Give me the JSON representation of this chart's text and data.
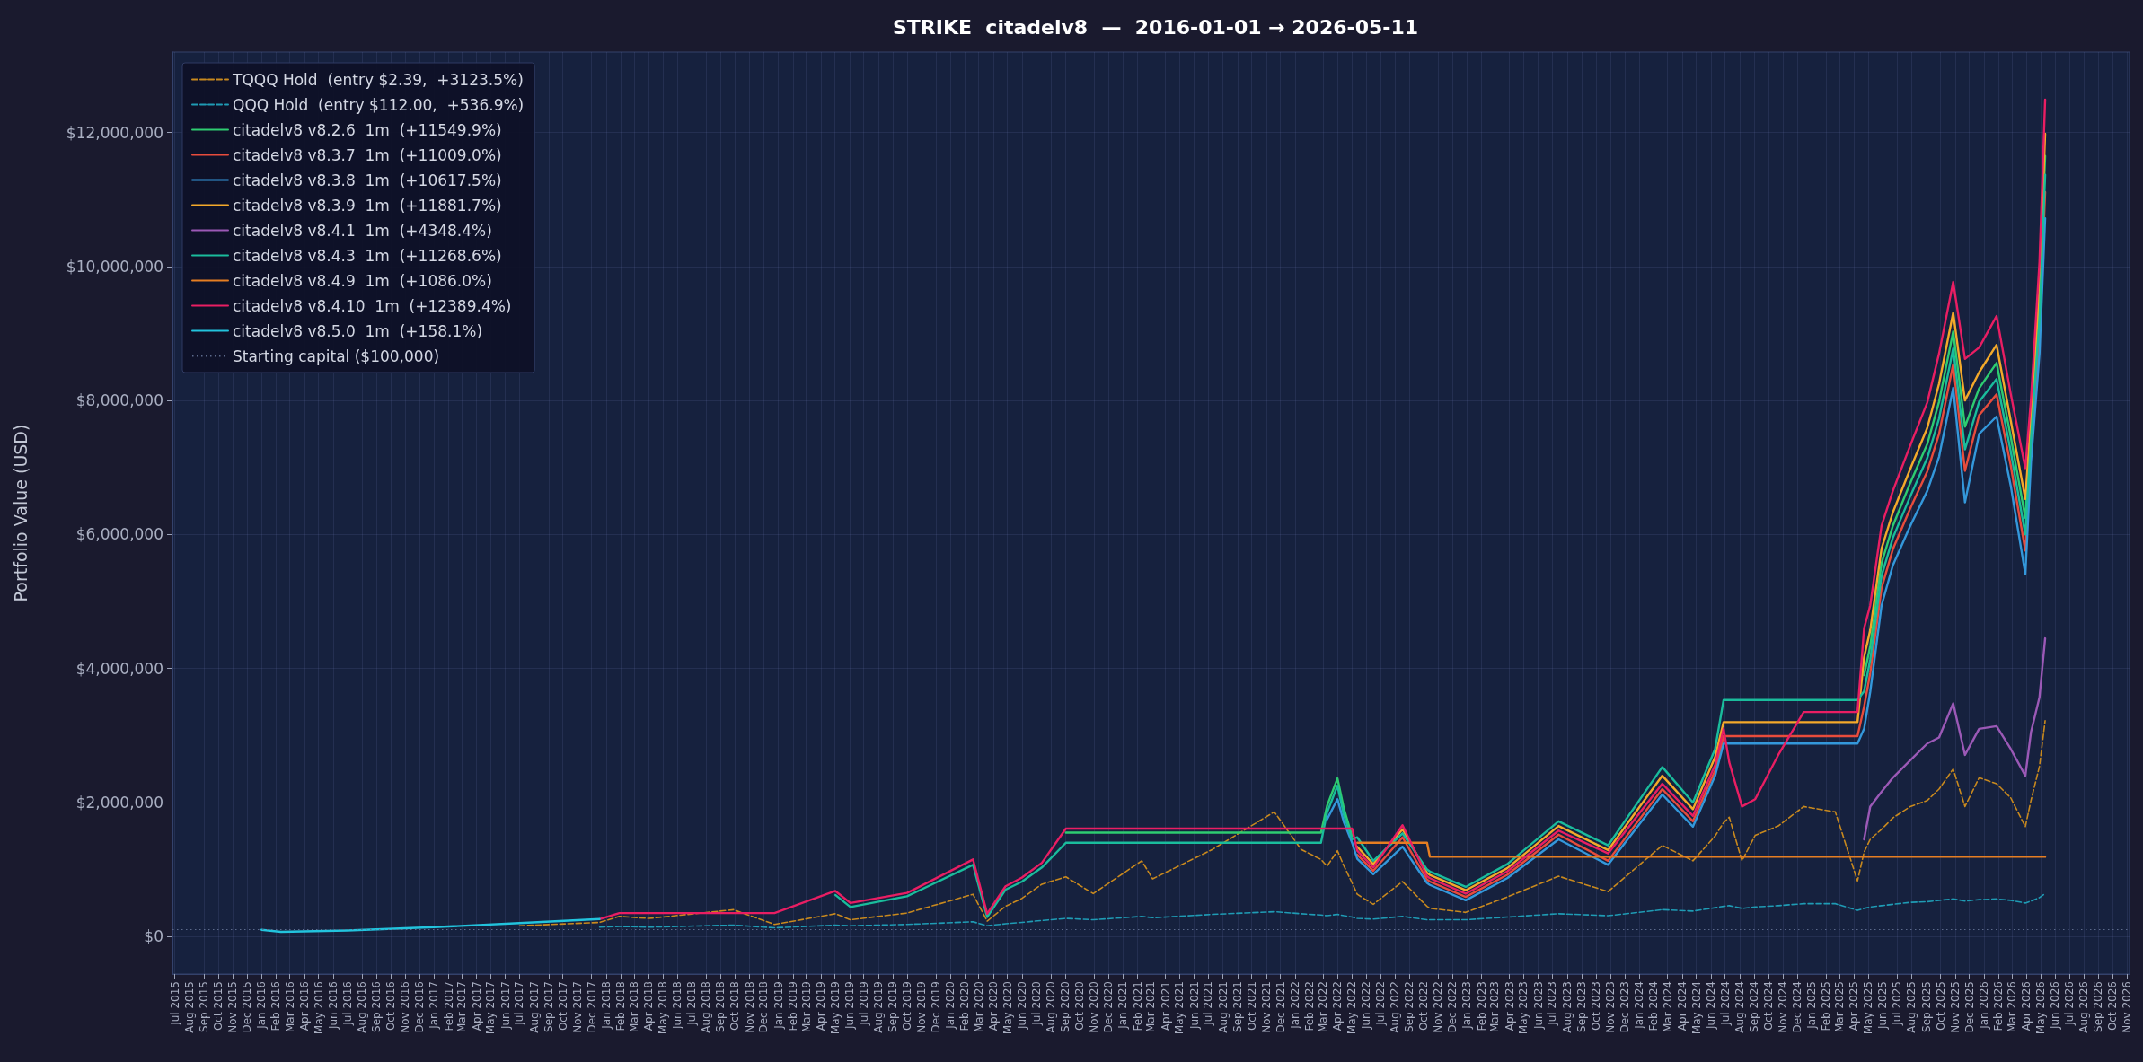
{
  "chart_data": {
    "type": "line",
    "title": "STRIKE  citadelv8  —  2016-01-01 → 2026-05-11",
    "ylabel": "Portfolio Value (USD)",
    "legend": "top left",
    "grid": true,
    "xlim": [
      "2015-06-26",
      "2026-11-06"
    ],
    "ylim": [
      -560000,
      13200000
    ],
    "yticks": [
      {
        "value": 0,
        "label": "$0"
      },
      {
        "value": 2000000,
        "label": "$2,000,000"
      },
      {
        "value": 4000000,
        "label": "$4,000,000"
      },
      {
        "value": 6000000,
        "label": "$6,000,000"
      },
      {
        "value": 8000000,
        "label": "$8,000,000"
      },
      {
        "value": 10000000,
        "label": "$10,000,000"
      },
      {
        "value": 12000000,
        "label": "$12,000,000"
      }
    ],
    "xticks": [
      {
        "value": "2015-07",
        "label": "Jul 2015"
      },
      {
        "value": "2015-08",
        "label": "Aug 2015"
      },
      {
        "value": "2015-09",
        "label": "Sep 2015"
      },
      {
        "value": "2015-10",
        "label": "Oct 2015"
      },
      {
        "value": "2015-11",
        "label": "Nov 2015"
      },
      {
        "value": "2015-12",
        "label": "Dec 2015"
      },
      {
        "value": "2016-01",
        "label": "Jan 2016"
      },
      {
        "value": "2016-02",
        "label": "Feb 2016"
      },
      {
        "value": "2016-03",
        "label": "Mar 2016"
      },
      {
        "value": "2016-04",
        "label": "Apr 2016"
      },
      {
        "value": "2016-05",
        "label": "May 2016"
      },
      {
        "value": "2016-06",
        "label": "Jun 2016"
      },
      {
        "value": "2016-07",
        "label": "Jul 2016"
      },
      {
        "value": "2016-08",
        "label": "Aug 2016"
      },
      {
        "value": "2016-09",
        "label": "Sep 2016"
      },
      {
        "value": "2016-10",
        "label": "Oct 2016"
      },
      {
        "value": "2016-11",
        "label": "Nov 2016"
      },
      {
        "value": "2016-12",
        "label": "Dec 2016"
      },
      {
        "value": "2017-01",
        "label": "Jan 2017"
      },
      {
        "value": "2017-02",
        "label": "Feb 2017"
      },
      {
        "value": "2017-03",
        "label": "Mar 2017"
      },
      {
        "value": "2017-04",
        "label": "Apr 2017"
      },
      {
        "value": "2017-05",
        "label": "May 2017"
      },
      {
        "value": "2017-06",
        "label": "Jun 2017"
      },
      {
        "value": "2017-07",
        "label": "Jul 2017"
      },
      {
        "value": "2017-08",
        "label": "Aug 2017"
      },
      {
        "value": "2017-09",
        "label": "Sep 2017"
      },
      {
        "value": "2017-10",
        "label": "Oct 2017"
      },
      {
        "value": "2017-11",
        "label": "Nov 2017"
      },
      {
        "value": "2017-12",
        "label": "Dec 2017"
      },
      {
        "value": "2018-01",
        "label": "Jan 2018"
      },
      {
        "value": "2018-02",
        "label": "Feb 2018"
      },
      {
        "value": "2018-03",
        "label": "Mar 2018"
      },
      {
        "value": "2018-04",
        "label": "Apr 2018"
      },
      {
        "value": "2018-05",
        "label": "May 2018"
      },
      {
        "value": "2018-06",
        "label": "Jun 2018"
      },
      {
        "value": "2018-07",
        "label": "Jul 2018"
      },
      {
        "value": "2018-08",
        "label": "Aug 2018"
      },
      {
        "value": "2018-09",
        "label": "Sep 2018"
      },
      {
        "value": "2018-10",
        "label": "Oct 2018"
      },
      {
        "value": "2018-11",
        "label": "Nov 2018"
      },
      {
        "value": "2018-12",
        "label": "Dec 2018"
      },
      {
        "value": "2019-01",
        "label": "Jan 2019"
      },
      {
        "value": "2019-02",
        "label": "Feb 2019"
      },
      {
        "value": "2019-03",
        "label": "Mar 2019"
      },
      {
        "value": "2019-04",
        "label": "Apr 2019"
      },
      {
        "value": "2019-05",
        "label": "May 2019"
      },
      {
        "value": "2019-06",
        "label": "Jun 2019"
      },
      {
        "value": "2019-07",
        "label": "Jul 2019"
      },
      {
        "value": "2019-08",
        "label": "Aug 2019"
      },
      {
        "value": "2019-09",
        "label": "Sep 2019"
      },
      {
        "value": "2019-10",
        "label": "Oct 2019"
      },
      {
        "value": "2019-11",
        "label": "Nov 2019"
      },
      {
        "value": "2019-12",
        "label": "Dec 2019"
      },
      {
        "value": "2020-01",
        "label": "Jan 2020"
      },
      {
        "value": "2020-02",
        "label": "Feb 2020"
      },
      {
        "value": "2020-03",
        "label": "Mar 2020"
      },
      {
        "value": "2020-04",
        "label": "Apr 2020"
      },
      {
        "value": "2020-05",
        "label": "May 2020"
      },
      {
        "value": "2020-06",
        "label": "Jun 2020"
      },
      {
        "value": "2020-07",
        "label": "Jul 2020"
      },
      {
        "value": "2020-08",
        "label": "Aug 2020"
      },
      {
        "value": "2020-09",
        "label": "Sep 2020"
      },
      {
        "value": "2020-10",
        "label": "Oct 2020"
      },
      {
        "value": "2020-11",
        "label": "Nov 2020"
      },
      {
        "value": "2020-12",
        "label": "Dec 2020"
      },
      {
        "value": "2021-01",
        "label": "Jan 2021"
      },
      {
        "value": "2021-02",
        "label": "Feb 2021"
      },
      {
        "value": "2021-03",
        "label": "Mar 2021"
      },
      {
        "value": "2021-04",
        "label": "Apr 2021"
      },
      {
        "value": "2021-05",
        "label": "May 2021"
      },
      {
        "value": "2021-06",
        "label": "Jun 2021"
      },
      {
        "value": "2021-07",
        "label": "Jul 2021"
      },
      {
        "value": "2021-08",
        "label": "Aug 2021"
      },
      {
        "value": "2021-09",
        "label": "Sep 2021"
      },
      {
        "value": "2021-10",
        "label": "Oct 2021"
      },
      {
        "value": "2021-11",
        "label": "Nov 2021"
      },
      {
        "value": "2021-12",
        "label": "Dec 2021"
      },
      {
        "value": "2022-01",
        "label": "Jan 2022"
      },
      {
        "value": "2022-02",
        "label": "Feb 2022"
      },
      {
        "value": "2022-03",
        "label": "Mar 2022"
      },
      {
        "value": "2022-04",
        "label": "Apr 2022"
      },
      {
        "value": "2022-05",
        "label": "May 2022"
      },
      {
        "value": "2022-06",
        "label": "Jun 2022"
      },
      {
        "value": "2022-07",
        "label": "Jul 2022"
      },
      {
        "value": "2022-08",
        "label": "Aug 2022"
      },
      {
        "value": "2022-09",
        "label": "Sep 2022"
      },
      {
        "value": "2022-10",
        "label": "Oct 2022"
      },
      {
        "value": "2022-11",
        "label": "Nov 2022"
      },
      {
        "value": "2022-12",
        "label": "Dec 2022"
      },
      {
        "value": "2023-01",
        "label": "Jan 2023"
      },
      {
        "value": "2023-02",
        "label": "Feb 2023"
      },
      {
        "value": "2023-03",
        "label": "Mar 2023"
      },
      {
        "value": "2023-04",
        "label": "Apr 2023"
      },
      {
        "value": "2023-05",
        "label": "May 2023"
      },
      {
        "value": "2023-06",
        "label": "Jun 2023"
      },
      {
        "value": "2023-07",
        "label": "Jul 2023"
      },
      {
        "value": "2023-08",
        "label": "Aug 2023"
      },
      {
        "value": "2023-09",
        "label": "Sep 2023"
      },
      {
        "value": "2023-10",
        "label": "Oct 2023"
      },
      {
        "value": "2023-11",
        "label": "Nov 2023"
      },
      {
        "value": "2023-12",
        "label": "Dec 2023"
      },
      {
        "value": "2024-01",
        "label": "Jan 2024"
      },
      {
        "value": "2024-02",
        "label": "Feb 2024"
      },
      {
        "value": "2024-03",
        "label": "Mar 2024"
      },
      {
        "value": "2024-04",
        "label": "Apr 2024"
      },
      {
        "value": "2024-05",
        "label": "May 2024"
      },
      {
        "value": "2024-06",
        "label": "Jun 2024"
      },
      {
        "value": "2024-07",
        "label": "Jul 2024"
      },
      {
        "value": "2024-08",
        "label": "Aug 2024"
      },
      {
        "value": "2024-09",
        "label": "Sep 2024"
      },
      {
        "value": "2024-10",
        "label": "Oct 2024"
      },
      {
        "value": "2024-11",
        "label": "Nov 2024"
      },
      {
        "value": "2024-12",
        "label": "Dec 2024"
      },
      {
        "value": "2025-01",
        "label": "Jan 2025"
      },
      {
        "value": "2025-02",
        "label": "Feb 2025"
      },
      {
        "value": "2025-03",
        "label": "Mar 2025"
      },
      {
        "value": "2025-04",
        "label": "Apr 2025"
      },
      {
        "value": "2025-05",
        "label": "May 2025"
      },
      {
        "value": "2025-06",
        "label": "Jun 2025"
      },
      {
        "value": "2025-07",
        "label": "Jul 2025"
      },
      {
        "value": "2025-08",
        "label": "Aug 2025"
      },
      {
        "value": "2025-09",
        "label": "Sep 2025"
      },
      {
        "value": "2025-10",
        "label": "Oct 2025"
      },
      {
        "value": "2025-11",
        "label": "Nov 2025"
      },
      {
        "value": "2025-12",
        "label": "Dec 2025"
      },
      {
        "value": "2026-01",
        "label": "Jan 2026"
      },
      {
        "value": "2026-02",
        "label": "Feb 2026"
      },
      {
        "value": "2026-03",
        "label": "Mar 2026"
      },
      {
        "value": "2026-04",
        "label": "Apr 2026"
      },
      {
        "value": "2026-05",
        "label": "May 2026"
      },
      {
        "value": "2026-06",
        "label": "Jun 2026"
      },
      {
        "value": "2026-07",
        "label": "Jul 2026"
      },
      {
        "value": "2026-08",
        "label": "Aug 2026"
      },
      {
        "value": "2026-09",
        "label": "Sep 2026"
      },
      {
        "value": "2026-10",
        "label": "Oct 2026"
      },
      {
        "value": "2026-11",
        "label": "Nov 2026"
      }
    ],
    "x": [
      "2016-01-01",
      "2016-02-11",
      "2016-07-01",
      "2017-01-01",
      "2017-07-01",
      "2017-12-18",
      "2018-01-29",
      "2018-04-02",
      "2018-09-28",
      "2018-12-24",
      "2019-05-02",
      "2019-06-03",
      "2019-10-01",
      "2020-02-18",
      "2020-03-19",
      "2020-04-27",
      "2020-06-01",
      "2020-07-13",
      "2020-09-02",
      "2020-10-30",
      "2021-02-10",
      "2021-03-05",
      "2021-07-10",
      "2021-11-18",
      "2022-01-14",
      "2022-02-25",
      "2022-03-10",
      "2022-04-01",
      "2022-04-15",
      "2022-05-02",
      "2022-05-13",
      "2022-06-16",
      "2022-08-17",
      "2022-10-08",
      "2022-10-14",
      "2022-12-29",
      "2023-03-27",
      "2023-07-14",
      "2023-10-27",
      "2024-02-19",
      "2024-04-24",
      "2024-06-10",
      "2024-06-28",
      "2024-07-10",
      "2024-08-06",
      "2024-09-03",
      "2024-10-22",
      "2024-12-15",
      "2025-02-20",
      "2025-04-08",
      "2025-04-22",
      "2025-05-05",
      "2025-05-29",
      "2025-06-22",
      "2025-07-29",
      "2025-09-03",
      "2025-09-28",
      "2025-10-28",
      "2025-11-22",
      "2025-12-22",
      "2026-01-28",
      "2026-02-27",
      "2026-03-30",
      "2026-04-11",
      "2026-04-29",
      "2026-05-11"
    ],
    "series": [
      {
        "name": "TQQQ Hold  (entry $2.39,  +3123.5%)",
        "color": "#c8891e",
        "line_style": "dashed",
        "values": [
          null,
          null,
          null,
          null,
          160000,
          210000,
          300000,
          270000,
          400000,
          180000,
          340000,
          250000,
          350000,
          630000,
          230000,
          450000,
          570000,
          780000,
          890000,
          640000,
          1130000,
          860000,
          1300000,
          1860000,
          1300000,
          1150000,
          1050000,
          1280000,
          1050000,
          800000,
          630000,
          480000,
          820000,
          450000,
          420000,
          360000,
          590000,
          900000,
          670000,
          1360000,
          1130000,
          1500000,
          1700000,
          1780000,
          1130000,
          1510000,
          1650000,
          1940000,
          1860000,
          830000,
          1260000,
          1450000,
          1600000,
          1770000,
          1940000,
          2030000,
          2200000,
          2500000,
          1940000,
          2370000,
          2280000,
          2070000,
          1640000,
          2030000,
          2540000,
          3220000
        ]
      },
      {
        "name": "QQQ Hold  (entry $112.00,  +536.9%)",
        "color": "#1f9bb4",
        "line_style": "dashed",
        "values": [
          null,
          null,
          null,
          null,
          null,
          140000,
          150000,
          140000,
          170000,
          130000,
          170000,
          160000,
          180000,
          220000,
          160000,
          190000,
          210000,
          240000,
          270000,
          250000,
          300000,
          280000,
          330000,
          370000,
          340000,
          320000,
          310000,
          330000,
          310000,
          290000,
          270000,
          260000,
          300000,
          250000,
          250000,
          250000,
          290000,
          340000,
          310000,
          400000,
          380000,
          430000,
          450000,
          460000,
          420000,
          440000,
          460000,
          490000,
          490000,
          390000,
          420000,
          440000,
          460000,
          480000,
          510000,
          520000,
          540000,
          560000,
          530000,
          550000,
          560000,
          540000,
          500000,
          530000,
          580000,
          640000
        ]
      },
      {
        "name": "citadelv8 v8.2.6  1m  (+11549.9%)",
        "color": "#2ecc71",
        "values": [
          null,
          null,
          null,
          null,
          null,
          null,
          null,
          null,
          null,
          null,
          null,
          null,
          null,
          null,
          null,
          null,
          null,
          null,
          1550000,
          1550000,
          1550000,
          1550000,
          1550000,
          1550000,
          1550000,
          1550000,
          1950000,
          2360000,
          1900000,
          1500000,
          null,
          null,
          null,
          null,
          null,
          null,
          null,
          null,
          null,
          null,
          null,
          null,
          null,
          null,
          null,
          null,
          null,
          null,
          null,
          null,
          3900000,
          4330000,
          5570000,
          6130000,
          6770000,
          7350000,
          7980000,
          9030000,
          7610000,
          8180000,
          8560000,
          7460000,
          6250000,
          7580000,
          9430000,
          11650000
        ]
      },
      {
        "name": "citadelv8 v8.3.7  1m  (+11009.0%)",
        "color": "#e74c3c",
        "values": [
          null,
          null,
          null,
          null,
          null,
          null,
          null,
          null,
          null,
          null,
          null,
          null,
          null,
          null,
          null,
          null,
          null,
          null,
          null,
          null,
          null,
          null,
          null,
          null,
          null,
          null,
          null,
          null,
          null,
          null,
          1220000,
          980000,
          1480000,
          850000,
          820000,
          590000,
          920000,
          1520000,
          1130000,
          2200000,
          1720000,
          2480000,
          2990000,
          2990000,
          2990000,
          2990000,
          2990000,
          2990000,
          2990000,
          2990000,
          3430000,
          3930000,
          5200000,
          5780000,
          6390000,
          6940000,
          7500000,
          8540000,
          6950000,
          7780000,
          8090000,
          7030000,
          5760000,
          7290000,
          9000000,
          11110000
        ]
      },
      {
        "name": "citadelv8 v8.3.8  1m  (+10617.5%)",
        "color": "#3498db",
        "values": [
          null,
          null,
          null,
          null,
          null,
          null,
          null,
          null,
          null,
          null,
          null,
          null,
          null,
          null,
          null,
          null,
          null,
          null,
          null,
          null,
          null,
          null,
          null,
          null,
          null,
          null,
          1750000,
          2050000,
          1700000,
          1400000,
          1160000,
          930000,
          1340000,
          800000,
          770000,
          540000,
          870000,
          1450000,
          1070000,
          2120000,
          1640000,
          2400000,
          2880000,
          2880000,
          2880000,
          2880000,
          2880000,
          2880000,
          2880000,
          2880000,
          3100000,
          3650000,
          4940000,
          5540000,
          6130000,
          6650000,
          7160000,
          8190000,
          6480000,
          7500000,
          7760000,
          6730000,
          5410000,
          7080000,
          8700000,
          10720000
        ]
      },
      {
        "name": "citadelv8 v8.3.9  1m  (+11881.7%)",
        "color": "#f4a92a",
        "values": [
          null,
          null,
          null,
          null,
          null,
          null,
          null,
          null,
          null,
          null,
          null,
          null,
          null,
          null,
          null,
          null,
          null,
          null,
          null,
          null,
          null,
          null,
          null,
          null,
          null,
          null,
          null,
          null,
          null,
          null,
          1340000,
          1080000,
          1600000,
          950000,
          920000,
          690000,
          1020000,
          1650000,
          1290000,
          2400000,
          1900000,
          2680000,
          3200000,
          3200000,
          3200000,
          3200000,
          3200000,
          3200000,
          3200000,
          3200000,
          4170000,
          4570000,
          5790000,
          6330000,
          6980000,
          7590000,
          8250000,
          9310000,
          8000000,
          8420000,
          8830000,
          7700000,
          6530000,
          7750000,
          9670000,
          11980000
        ]
      },
      {
        "name": "citadelv8 v8.4.1  1m  (+4348.4%)",
        "color": "#9b59b6",
        "values": [
          null,
          null,
          null,
          null,
          null,
          null,
          null,
          null,
          null,
          null,
          null,
          null,
          null,
          null,
          null,
          null,
          null,
          null,
          null,
          null,
          null,
          null,
          null,
          null,
          null,
          null,
          null,
          null,
          null,
          null,
          null,
          null,
          null,
          null,
          null,
          null,
          null,
          null,
          null,
          null,
          null,
          null,
          null,
          null,
          null,
          null,
          null,
          null,
          null,
          null,
          1450000,
          1940000,
          2160000,
          2370000,
          2630000,
          2880000,
          2970000,
          3480000,
          2710000,
          3100000,
          3140000,
          2800000,
          2400000,
          3050000,
          3570000,
          4450000
        ]
      },
      {
        "name": "citadelv8 v8.4.3  1m  (+11268.6%)",
        "color": "#1abc9c",
        "values": [
          null,
          null,
          null,
          null,
          null,
          null,
          null,
          null,
          null,
          null,
          620000,
          440000,
          600000,
          1070000,
          290000,
          700000,
          820000,
          1030000,
          1400000,
          1400000,
          1400000,
          1400000,
          1400000,
          1400000,
          1400000,
          1400000,
          1850000,
          2250000,
          1800000,
          1450000,
          1480000,
          1130000,
          1540000,
          1000000,
          970000,
          740000,
          1080000,
          1720000,
          1360000,
          2530000,
          2000000,
          2800000,
          3530000,
          3530000,
          3530000,
          3530000,
          3530000,
          3530000,
          3530000,
          3530000,
          3660000,
          4130000,
          5380000,
          5950000,
          6570000,
          7140000,
          7730000,
          8780000,
          7270000,
          7980000,
          8320000,
          7240000,
          6000000,
          7430000,
          9210000,
          11370000
        ]
      },
      {
        "name": "citadelv8 v8.4.9  1m  (+1086.0%)",
        "color": "#e67e22",
        "values": [
          null,
          null,
          null,
          null,
          null,
          null,
          null,
          null,
          null,
          null,
          null,
          null,
          null,
          null,
          null,
          null,
          null,
          null,
          null,
          null,
          null,
          null,
          null,
          null,
          null,
          null,
          null,
          null,
          null,
          null,
          1400000,
          1400000,
          1400000,
          1400000,
          1190000,
          1190000,
          1190000,
          1190000,
          1190000,
          1190000,
          1190000,
          1190000,
          1190000,
          1190000,
          1190000,
          1190000,
          1190000,
          1190000,
          1190000,
          1190000,
          1190000,
          1190000,
          1190000,
          1190000,
          1190000,
          1190000,
          1190000,
          1190000,
          1190000,
          1190000,
          1190000,
          1190000,
          1190000,
          1190000,
          1190000,
          1190000
        ]
      },
      {
        "name": "citadelv8 v8.4.10  1m  (+12389.4%)",
        "color": "#e91e63",
        "values": [
          null,
          null,
          null,
          null,
          null,
          260000,
          350000,
          350000,
          350000,
          350000,
          680000,
          500000,
          650000,
          1150000,
          340000,
          750000,
          880000,
          1100000,
          1610000,
          1610000,
          1610000,
          1610000,
          1610000,
          1610000,
          1610000,
          1610000,
          1610000,
          1610000,
          1610000,
          1610000,
          1280000,
          1030000,
          1660000,
          900000,
          870000,
          640000,
          970000,
          1580000,
          1240000,
          2280000,
          1800000,
          2560000,
          3100000,
          2600000,
          1940000,
          2050000,
          2710000,
          3350000,
          3350000,
          3350000,
          4600000,
          4940000,
          6130000,
          6650000,
          7330000,
          7970000,
          8700000,
          9770000,
          8620000,
          8790000,
          9260000,
          8100000,
          6990000,
          8020000,
          10070000,
          12490000
        ]
      },
      {
        "name": "citadelv8 v8.5.0  1m  (+158.1%)",
        "color": "#22c3dd",
        "values": [
          100000,
          70000,
          90000,
          140000,
          200000,
          260000,
          null,
          null,
          null,
          null,
          null,
          null,
          null,
          null,
          null,
          null,
          null,
          null,
          null,
          null,
          null,
          null,
          null,
          null,
          null,
          null,
          null,
          null,
          null,
          null,
          null,
          null,
          null,
          null,
          null,
          null,
          null,
          null,
          null,
          null,
          null,
          null,
          null,
          null,
          null,
          null,
          null,
          null,
          null,
          null,
          null,
          null,
          null,
          null,
          null,
          null,
          null,
          null,
          null,
          null,
          null,
          null,
          null,
          null,
          null,
          null
        ]
      }
    ],
    "ref_lines": [
      {
        "axis": "y",
        "value": 100000,
        "label": "Starting capital ($100,000)",
        "color": "#5d6b8c",
        "line_style": "dotted"
      }
    ]
  }
}
